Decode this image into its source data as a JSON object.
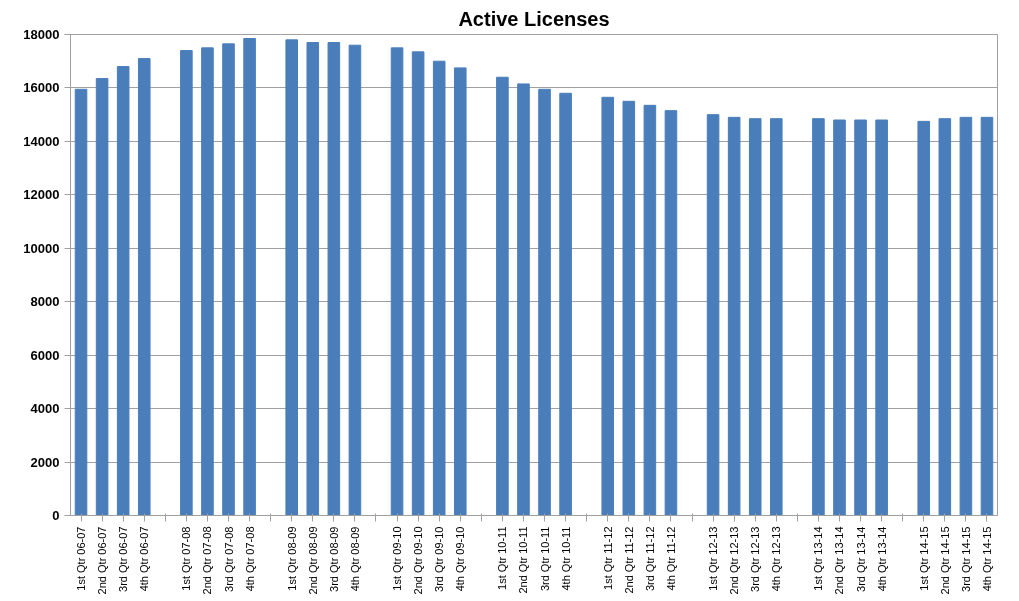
{
  "chart_data": {
    "type": "bar",
    "title": "Active Licenses",
    "categories": [
      "1st Qtr 06-07",
      "2nd Qtr 06-07",
      "3rd Qtr 06-07",
      "4th Qtr 06-07",
      null,
      "1st Qtr 07-08",
      "2nd Qtr 07-08",
      "3rd Qtr 07-08",
      "4th Qtr 07-08",
      null,
      "1st Qtr 08-09",
      "2nd Qtr 08-09",
      "3rd Qtr 08-09",
      "4th Qtr 08-09",
      null,
      "1st Qtr 09-10",
      "2nd Qtr 09-10",
      "3rd Qtr 09-10",
      "4th Qtr 09-10",
      null,
      "1st Qtr 10-11",
      "2nd Qtr 10-11",
      "3rd Qtr 10-11",
      "4th Qtr 10-11",
      null,
      "1st Qtr 11-12",
      "2nd Qtr 11-12",
      "3rd Qtr 11-12",
      "4th Qtr 11-12",
      null,
      "1st Qtr 12-13",
      "2nd Qtr 12-13",
      "3rd Qtr 12-13",
      "4th Qtr 12-13",
      null,
      "1st Qtr 13-14",
      "2nd Qtr 13-14",
      "3rd Qtr 13-14",
      "4th Qtr 13-14",
      null,
      "1st Qtr 14-15",
      "2nd Qtr 14-15",
      "3rd Qtr 14-15",
      "4th Qtr 14-15"
    ],
    "values": [
      15950,
      16350,
      16800,
      17100,
      null,
      17400,
      17500,
      17650,
      17850,
      null,
      17800,
      17700,
      17700,
      17600,
      null,
      17500,
      17350,
      17000,
      16750,
      null,
      16400,
      16150,
      15950,
      15800,
      null,
      15650,
      15500,
      15350,
      15150,
      null,
      15000,
      14900,
      14850,
      14850,
      null,
      14850,
      14800,
      14800,
      14800,
      null,
      14750,
      14850,
      14900,
      14900
    ],
    "color": "#4a7ebb",
    "ylim": [
      0,
      18000
    ],
    "yticks": [
      0,
      2000,
      4000,
      6000,
      8000,
      10000,
      12000,
      14000,
      16000,
      18000
    ],
    "grid": "y"
  }
}
